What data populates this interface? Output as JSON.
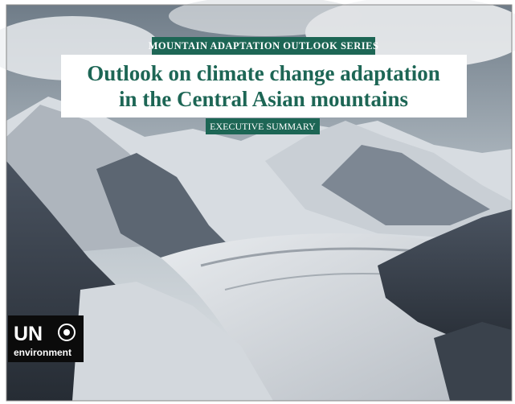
{
  "cover": {
    "series": "MOUNTAIN ADAPTATION OUTLOOK SERIES",
    "title_lines": [
      "Outlook on climate change adaptation",
      "in the Central Asian mountains"
    ],
    "subtitle": "EXECUTIVE SUMMARY",
    "logo": {
      "mark": "UN",
      "text": "environment"
    }
  }
}
